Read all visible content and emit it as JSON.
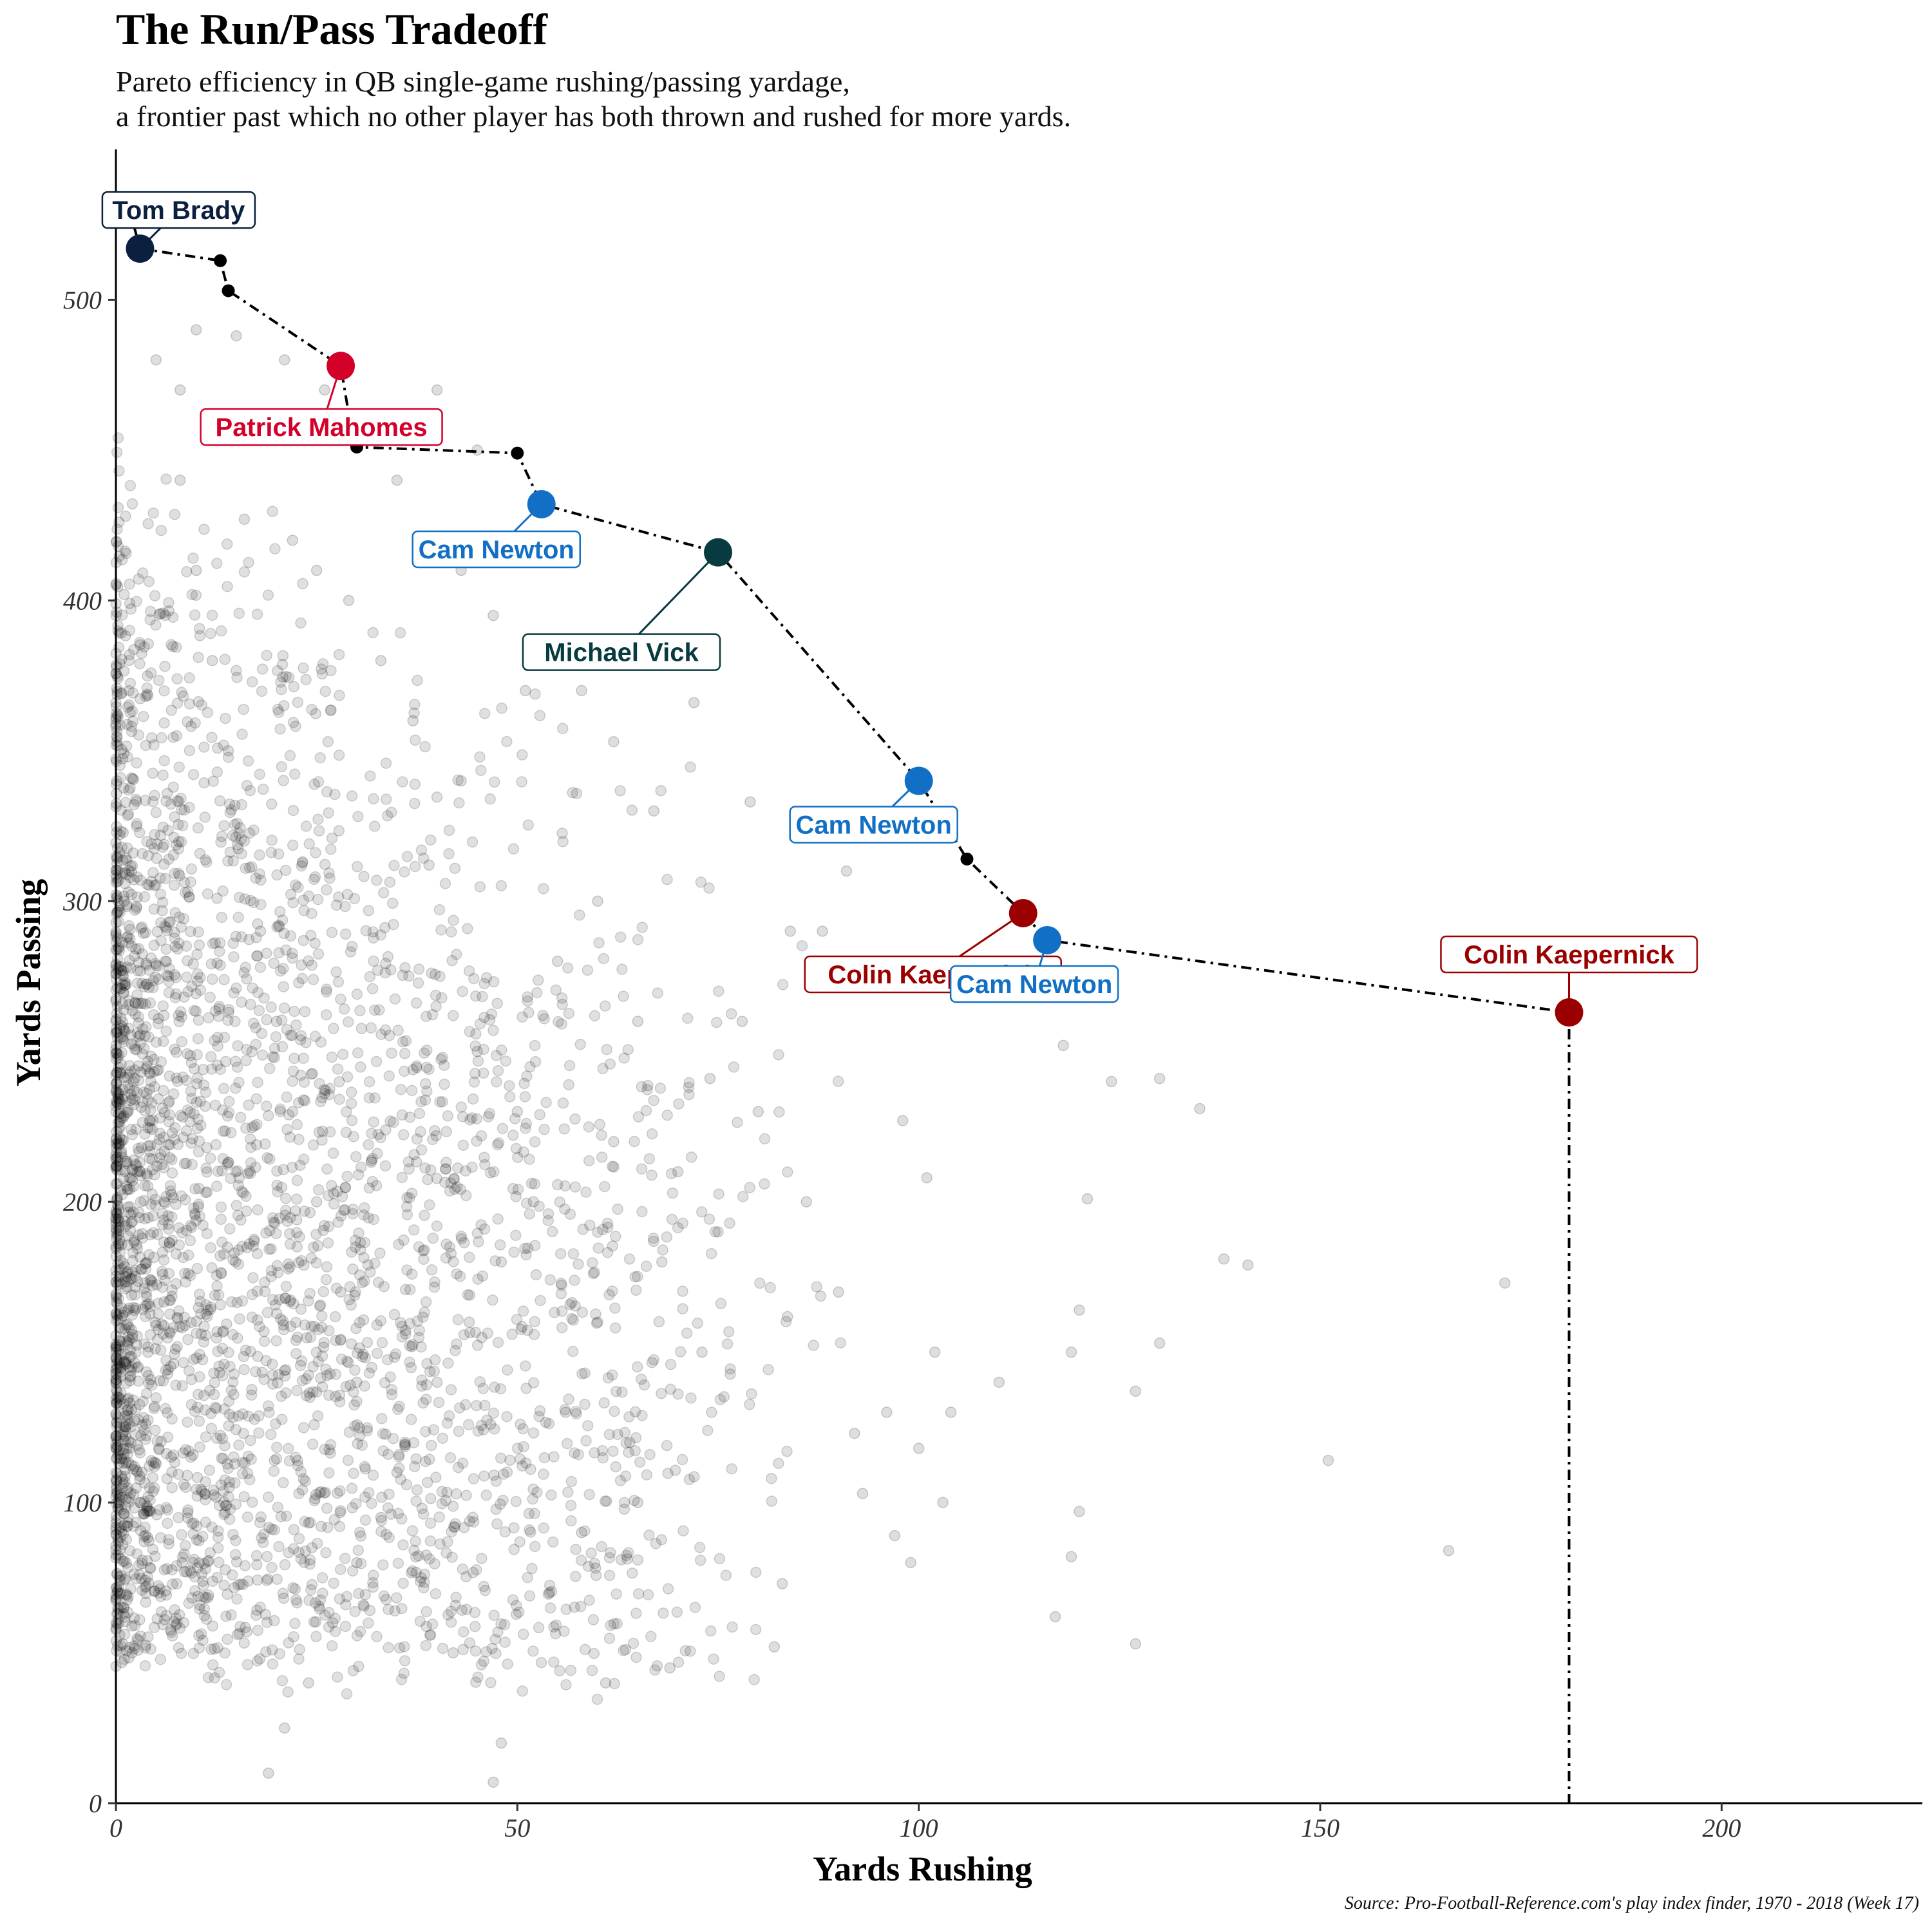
{
  "header": {
    "title": "The Run/Pass Tradeoff",
    "subtitle_line1": "Pareto efficiency in QB single-game rushing/passing yardage,",
    "subtitle_line2": "a frontier past which no other player has both thrown and rushed for more yards."
  },
  "caption": "Source: Pro-Football-Reference.com's play index finder, 1970 - 2018 (Week 17)",
  "chart_data": {
    "type": "scatter",
    "title": "The Run/Pass Tradeoff",
    "xlabel": "Yards Rushing",
    "ylabel": "Yards Passing",
    "xlim": [
      0,
      225
    ],
    "ylim": [
      0,
      550
    ],
    "x_ticks": [
      0,
      50,
      100,
      150,
      200
    ],
    "y_ticks": [
      0,
      100,
      200,
      300,
      400,
      500
    ],
    "grid": false,
    "background_points_description_color": "#000000",
    "background_points_sample": [
      [
        72,
        366
      ],
      [
        67,
        330
      ],
      [
        74,
        241
      ],
      [
        88,
        290
      ],
      [
        98,
        227
      ],
      [
        101,
        208
      ],
      [
        121,
        201
      ],
      [
        130,
        241
      ],
      [
        135,
        231
      ],
      [
        124,
        240
      ],
      [
        118,
        252
      ],
      [
        138,
        181
      ],
      [
        141,
        179
      ],
      [
        173,
        173
      ],
      [
        120,
        164
      ],
      [
        130,
        153
      ],
      [
        119,
        150
      ],
      [
        127,
        137
      ],
      [
        110,
        140
      ],
      [
        102,
        150
      ],
      [
        104,
        130
      ],
      [
        103,
        100
      ],
      [
        97,
        89
      ],
      [
        99,
        80
      ],
      [
        100,
        118
      ],
      [
        151,
        114
      ],
      [
        166,
        84
      ],
      [
        120,
        97
      ],
      [
        119,
        82
      ],
      [
        117,
        62
      ],
      [
        127,
        53
      ],
      [
        83,
        73
      ],
      [
        82,
        52
      ],
      [
        69,
        45
      ],
      [
        65,
        100
      ],
      [
        92,
        123
      ],
      [
        93,
        103
      ],
      [
        96,
        130
      ],
      [
        90,
        170
      ],
      [
        86,
        200
      ],
      [
        80,
        230
      ],
      [
        78,
        260
      ],
      [
        84,
        290
      ],
      [
        91,
        310
      ],
      [
        79,
        333
      ],
      [
        58,
        370
      ],
      [
        51,
        370
      ],
      [
        62,
        353
      ],
      [
        47,
        395
      ],
      [
        43,
        410
      ],
      [
        45,
        450
      ],
      [
        40,
        470
      ],
      [
        35,
        440
      ],
      [
        31,
        461
      ],
      [
        26,
        470
      ],
      [
        21,
        480
      ],
      [
        18,
        460
      ],
      [
        15,
        488
      ],
      [
        10,
        490
      ],
      [
        8,
        470
      ],
      [
        5,
        480
      ],
      [
        16,
        427
      ],
      [
        22,
        420
      ],
      [
        60,
        300
      ],
      [
        55,
        280
      ],
      [
        65,
        260
      ],
      [
        62,
        220
      ],
      [
        70,
        210
      ],
      [
        75,
        190
      ],
      [
        68,
        180
      ],
      [
        73,
        150
      ],
      [
        60,
        160
      ],
      [
        56,
        130
      ],
      [
        64,
        120
      ],
      [
        58,
        90
      ],
      [
        54,
        70
      ],
      [
        61,
        40
      ],
      [
        48,
        20
      ],
      [
        42,
        50
      ],
      [
        38,
        75
      ],
      [
        35,
        110
      ],
      [
        30,
        140
      ],
      [
        28,
        170
      ],
      [
        25,
        200
      ],
      [
        22,
        230
      ],
      [
        20,
        260
      ],
      [
        18,
        290
      ],
      [
        16,
        320
      ],
      [
        14,
        350
      ],
      [
        12,
        380
      ],
      [
        10,
        410
      ],
      [
        8,
        440
      ],
      [
        6,
        200
      ],
      [
        4,
        150
      ],
      [
        3,
        100
      ],
      [
        2,
        50
      ],
      [
        1,
        300
      ],
      [
        45,
        250
      ],
      [
        50,
        230
      ],
      [
        52,
        200
      ],
      [
        48,
        180
      ],
      [
        44,
        160
      ],
      [
        40,
        140
      ],
      [
        36,
        120
      ],
      [
        33,
        95
      ],
      [
        30,
        80
      ],
      [
        27,
        60
      ],
      [
        24,
        40
      ],
      [
        21,
        25
      ],
      [
        19,
        10
      ],
      [
        47,
        7
      ],
      [
        39,
        312
      ],
      [
        43,
        340
      ],
      [
        37,
        360
      ],
      [
        33,
        380
      ],
      [
        29,
        400
      ],
      [
        25,
        410
      ]
    ],
    "frontier": [
      {
        "x": 0,
        "y": 527
      },
      {
        "x": 2,
        "y": 527
      },
      {
        "x": 3,
        "y": 517
      },
      {
        "x": 13,
        "y": 513
      },
      {
        "x": 14,
        "y": 503
      },
      {
        "x": 28,
        "y": 478
      },
      {
        "x": 29,
        "y": 462
      },
      {
        "x": 30,
        "y": 451
      },
      {
        "x": 50,
        "y": 449
      },
      {
        "x": 53,
        "y": 432
      },
      {
        "x": 75,
        "y": 416
      },
      {
        "x": 100,
        "y": 340
      },
      {
        "x": 106,
        "y": 314
      },
      {
        "x": 113,
        "y": 296
      },
      {
        "x": 116,
        "y": 287
      },
      {
        "x": 181,
        "y": 263
      },
      {
        "x": 181,
        "y": 0
      }
    ],
    "highlighted": [
      {
        "name": "Tom Brady",
        "x": 3,
        "y": 517,
        "color": "#0b1f3f"
      },
      {
        "name": "Patrick Mahomes",
        "x": 28,
        "y": 478,
        "color": "#d3002a"
      },
      {
        "name": "Cam Newton",
        "x": 53,
        "y": 432,
        "color": "#1170c5"
      },
      {
        "name": "Michael Vick",
        "x": 75,
        "y": 416,
        "color": "#073b3f"
      },
      {
        "name": "Cam Newton",
        "x": 100,
        "y": 340,
        "color": "#1170c5"
      },
      {
        "name": "Colin Kaepernick",
        "x": 113,
        "y": 296,
        "color": "#9b0000"
      },
      {
        "name": "Cam Newton",
        "x": 116,
        "y": 287,
        "color": "#1170c5"
      },
      {
        "name": "Colin Kaepernick",
        "x": 181,
        "y": 263,
        "color": "#9b0000"
      }
    ],
    "frontier_small_points": [
      {
        "x": 2,
        "y": 527
      },
      {
        "x": 13,
        "y": 513
      },
      {
        "x": 14,
        "y": 503
      },
      {
        "x": 30,
        "y": 451
      },
      {
        "x": 50,
        "y": 449
      },
      {
        "x": 106,
        "y": 314
      }
    ]
  }
}
